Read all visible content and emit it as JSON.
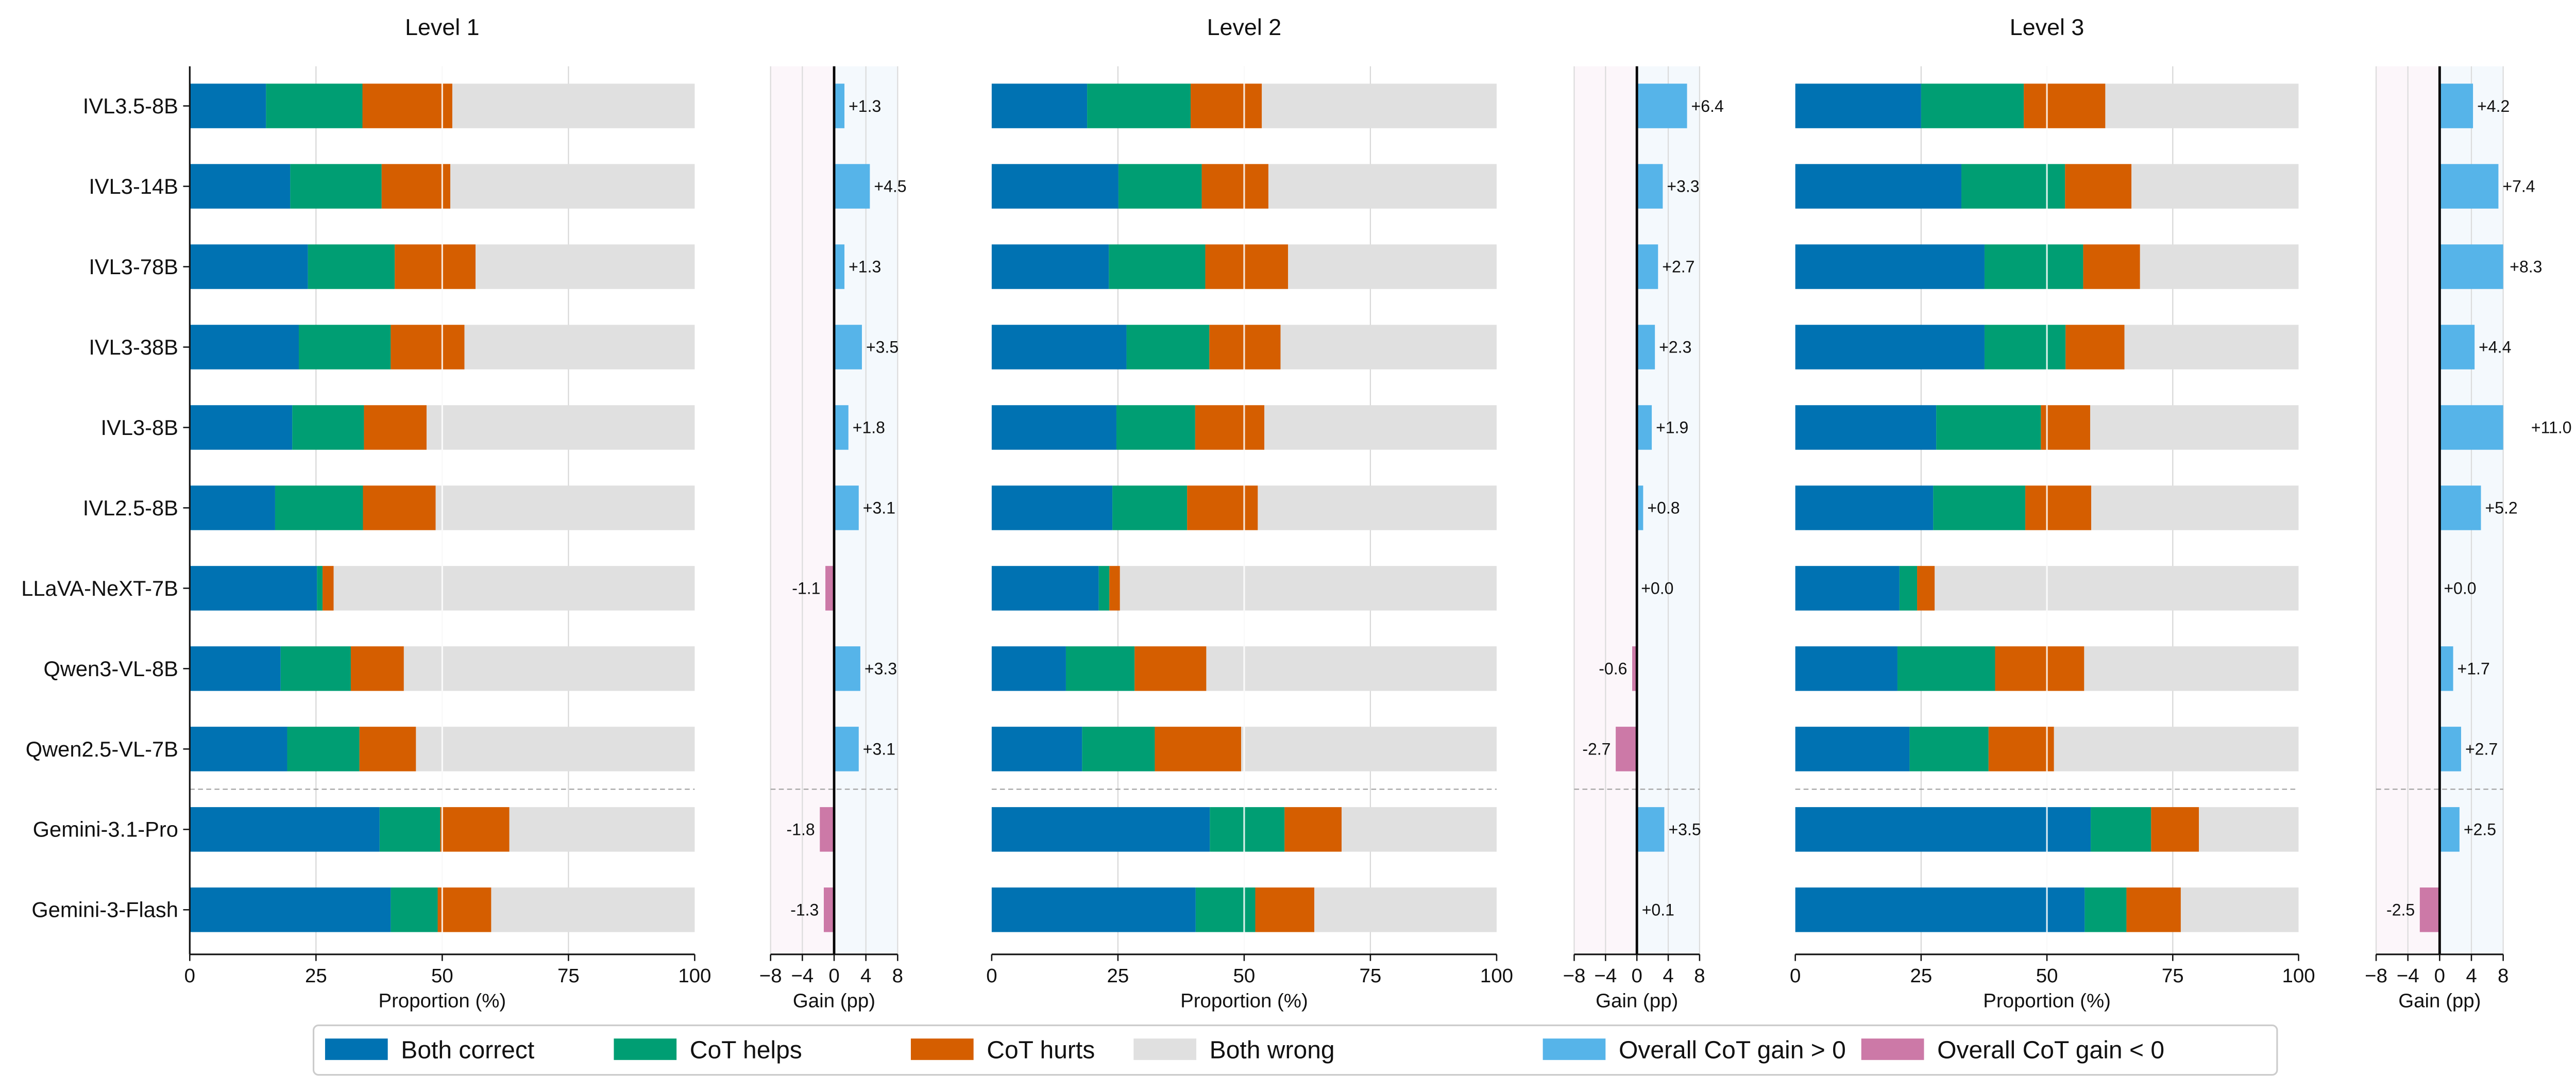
{
  "colors": {
    "both_correct": "#0072b2",
    "cot_helps": "#009e73",
    "cot_hurts": "#d55e00",
    "both_wrong": "#e0e0e0",
    "gain_pos": "#56b4e9",
    "gain_neg": "#cc79a7",
    "gain_bg_neg": "#fcf6fa",
    "gain_bg_pos": "#f4f9fd"
  },
  "chart_data": {
    "type": "bar",
    "orientation": "horizontal-stacked",
    "models": [
      "IVL3.5-8B",
      "IVL3-14B",
      "IVL3-78B",
      "IVL3-38B",
      "IVL3-8B",
      "IVL2.5-8B",
      "LLaVA-NeXT-7B",
      "Qwen3-VL-8B",
      "Qwen2.5-VL-7B",
      "Gemini-3.1-Pro",
      "Gemini-3-Flash"
    ],
    "separator_after_index": 8,
    "stack_categories": [
      "Both correct",
      "CoT helps",
      "CoT hurts",
      "Both wrong"
    ],
    "proportion_axis": {
      "label": "Proportion (%)",
      "range": [
        0,
        100
      ],
      "ticks": [
        "0",
        "25",
        "50",
        "75",
        "100"
      ],
      "grid": true
    },
    "gain_axis": {
      "label": "Gain (pp)",
      "range": [
        -8,
        8
      ],
      "ticks": [
        "−8",
        "−4",
        "0",
        "4",
        "8"
      ],
      "grid": true
    },
    "legend": {
      "placement": "bottom",
      "entries": [
        "Both correct",
        "CoT helps",
        "CoT hurts",
        "Both wrong",
        "Overall CoT gain > 0",
        "Overall CoT gain < 0"
      ]
    },
    "panels": [
      {
        "title": "Level 1",
        "both_correct": [
          15.1,
          19.9,
          23.4,
          21.6,
          20.3,
          16.9,
          25.2,
          18.0,
          19.3,
          37.6,
          39.8
        ],
        "cot_helps": [
          19.1,
          18.1,
          17.2,
          18.2,
          14.2,
          17.4,
          1.1,
          13.9,
          14.3,
          12.0,
          9.3
        ],
        "cot_hurts": [
          17.8,
          13.6,
          16.0,
          14.6,
          12.4,
          14.4,
          2.2,
          10.5,
          11.2,
          13.7,
          10.6
        ],
        "gain": [
          1.3,
          4.5,
          1.3,
          3.5,
          1.8,
          3.1,
          -1.1,
          3.3,
          3.1,
          -1.8,
          -1.3
        ],
        "gain_labels": [
          "+1.3",
          "+4.5",
          "+1.3",
          "+3.5",
          "+1.8",
          "+3.1",
          "-1.1",
          "+3.3",
          "+3.1",
          "-1.8",
          "-1.3"
        ]
      },
      {
        "title": "Level 2",
        "both_correct": [
          18.9,
          25.1,
          23.2,
          26.7,
          24.7,
          23.9,
          21.2,
          14.7,
          17.9,
          43.2,
          40.4
        ],
        "cot_helps": [
          20.5,
          16.5,
          19.1,
          16.4,
          15.6,
          14.8,
          2.1,
          13.6,
          14.4,
          14.8,
          11.8
        ],
        "cot_hurts": [
          14.1,
          13.2,
          16.4,
          14.1,
          13.7,
          14.0,
          2.1,
          14.2,
          17.1,
          11.3,
          11.7
        ],
        "gain": [
          6.4,
          3.3,
          2.7,
          2.3,
          1.9,
          0.8,
          0.0,
          -0.6,
          -2.7,
          3.5,
          0.1
        ],
        "gain_labels": [
          "+6.4",
          "+3.3",
          "+2.7",
          "+2.3",
          "+1.9",
          "+0.8",
          "+0.0",
          "-0.6",
          "-2.7",
          "+3.5",
          "+0.1"
        ]
      },
      {
        "title": "Level 3",
        "both_correct": [
          25.0,
          33.0,
          37.6,
          37.6,
          28.0,
          27.4,
          20.7,
          20.3,
          22.7,
          58.7,
          57.5
        ],
        "cot_helps": [
          20.4,
          20.6,
          19.6,
          16.1,
          20.8,
          18.3,
          3.5,
          19.4,
          15.7,
          12.0,
          8.3
        ],
        "cot_hurts": [
          16.2,
          13.2,
          11.3,
          11.7,
          9.8,
          13.1,
          3.5,
          17.7,
          13.0,
          9.5,
          10.8
        ],
        "gain": [
          4.2,
          7.4,
          8.3,
          4.4,
          11.0,
          5.2,
          0.0,
          1.7,
          2.7,
          2.5,
          -2.5
        ],
        "gain_labels": [
          "+4.2",
          "+7.4",
          "+8.3",
          "+4.4",
          "+11.0",
          "+5.2",
          "+0.0",
          "+1.7",
          "+2.7",
          "+2.5",
          "-2.5"
        ]
      }
    ]
  }
}
